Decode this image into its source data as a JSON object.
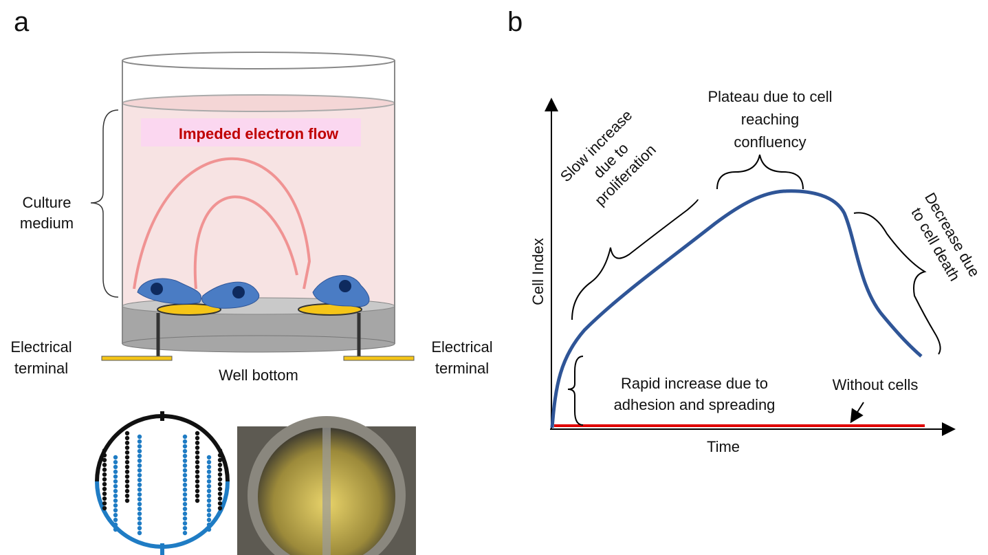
{
  "panel_a": {
    "label": "a",
    "banner": "Impeded electron flow",
    "culture_medium": [
      "Culture",
      "medium"
    ],
    "terminal_left": [
      "Electrical",
      "terminal"
    ],
    "terminal_right": [
      "Electrical",
      "terminal"
    ],
    "well_bottom": "Well bottom"
  },
  "panel_b": {
    "label": "b",
    "y_axis": "Cell Index",
    "x_axis": "Time",
    "slow": [
      "Slow increase",
      "due to",
      "proliferation"
    ],
    "plateau": [
      "Plateau due to cell",
      "reaching",
      "confluency"
    ],
    "decrease": [
      "Decrease due",
      "to cell death"
    ],
    "rapid": [
      "Rapid increase due to",
      "adhesion and spreading"
    ],
    "without": "Without cells"
  }
}
